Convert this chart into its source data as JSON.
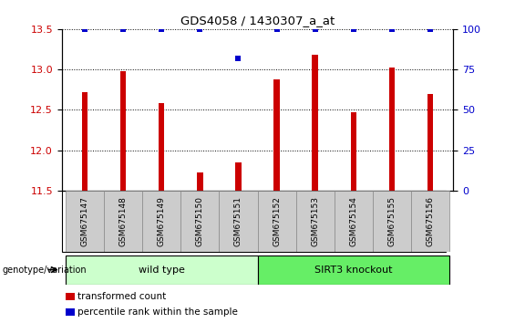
{
  "title": "GDS4058 / 1430307_a_at",
  "samples": [
    "GSM675147",
    "GSM675148",
    "GSM675149",
    "GSM675150",
    "GSM675151",
    "GSM675152",
    "GSM675153",
    "GSM675154",
    "GSM675155",
    "GSM675156"
  ],
  "transformed_count": [
    12.72,
    12.98,
    12.58,
    11.72,
    11.85,
    12.88,
    13.18,
    12.47,
    13.02,
    12.7
  ],
  "percentile_rank": [
    100,
    100,
    100,
    100,
    82,
    100,
    100,
    100,
    100,
    100
  ],
  "ylim_left": [
    11.5,
    13.5
  ],
  "ylim_right": [
    0,
    100
  ],
  "yticks_left": [
    11.5,
    12.0,
    12.5,
    13.0,
    13.5
  ],
  "yticks_right": [
    0,
    25,
    50,
    75,
    100
  ],
  "bar_color": "#cc0000",
  "dot_color": "#0000cc",
  "bar_width": 0.15,
  "groups": [
    {
      "label": "wild type",
      "indices": [
        0,
        1,
        2,
        3,
        4
      ],
      "color": "#ccffcc"
    },
    {
      "label": "SIRT3 knockout",
      "indices": [
        5,
        6,
        7,
        8,
        9
      ],
      "color": "#66ee66"
    }
  ],
  "group_label_prefix": "genotype/variation",
  "legend_items": [
    {
      "color": "#cc0000",
      "label": "transformed count"
    },
    {
      "color": "#0000cc",
      "label": "percentile rank within the sample"
    }
  ],
  "tick_label_color_left": "#cc0000",
  "tick_label_color_right": "#0000cc",
  "grid_color": "#000000",
  "sample_box_color": "#cccccc",
  "sample_box_edge": "#888888"
}
